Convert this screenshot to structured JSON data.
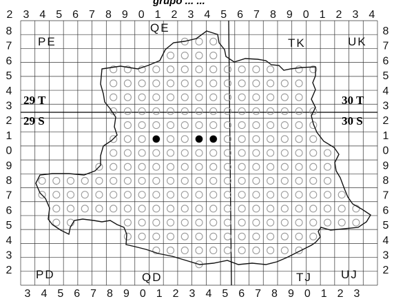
{
  "title_partial": "grupo ... ...",
  "top_axis": [
    "2",
    "3",
    "4",
    "5",
    "6",
    "7",
    "8",
    "9",
    "0",
    "1",
    "2",
    "3",
    "4",
    "5",
    "6",
    "7",
    "8",
    "9",
    "0",
    "1",
    "2",
    "3",
    "4"
  ],
  "bottom_axis": [
    "3",
    "4",
    "5",
    "6",
    "7",
    "8",
    "9",
    "0",
    "1",
    "2",
    "3",
    "4",
    "5",
    "6",
    "7",
    "8",
    "9",
    "0",
    "1",
    "2",
    "3"
  ],
  "left_axis": [
    "8",
    "7",
    "6",
    "5",
    "4",
    "3",
    "2",
    "1",
    "0",
    "9",
    "8",
    "7",
    "6",
    "5",
    "4",
    "3",
    "2"
  ],
  "right_axis": [
    "8",
    "7",
    "6",
    "5",
    "4",
    "3",
    "2",
    "1",
    "0",
    "9",
    "8",
    "7",
    "6",
    "5",
    "4",
    "3",
    "2"
  ],
  "squares": {
    "PE": "PE",
    "QE": "QE",
    "TK": "TK",
    "UK": "UK",
    "PD": "PD",
    "QD": "QD",
    "TJ": "TJ",
    "UJ": "UJ"
  },
  "utm_zones": {
    "left_top": "29 T",
    "left_bottom": "29 S",
    "right_top": "30 T",
    "right_bottom": "30 S"
  },
  "colors": {
    "grid": "#333333",
    "open_circle": "#9a9a9a",
    "presence_dot": "#000000",
    "region_outline": "#111111"
  },
  "records": {
    "filled_dots": 3,
    "open_circle_meaning": "no record"
  }
}
